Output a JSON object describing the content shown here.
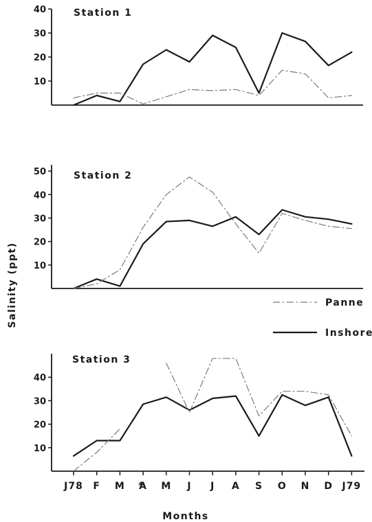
{
  "chart_data": {
    "type": "line",
    "ylabel": "Salinity (ppt)",
    "xlabel": "Months",
    "x": [
      "J78",
      "F",
      "M",
      "A",
      "M",
      "J",
      "J",
      "A",
      "S",
      "O",
      "N",
      "D",
      "J79"
    ],
    "legend": {
      "placement": "right",
      "entries": [
        {
          "name": "Panne",
          "style": "dash-dot",
          "color": "#7a7a7a"
        },
        {
          "name": "Inshore",
          "style": "solid",
          "color": "#1a1a1a"
        }
      ]
    },
    "annotation": "*",
    "panels": [
      {
        "title": "Station 1",
        "ylim": [
          0,
          40
        ],
        "yticks": [
          "40",
          "30",
          "20",
          "10"
        ],
        "series": [
          {
            "name": "Inshore",
            "values": [
              0,
              4,
              1.5,
              17,
              23,
              18,
              29,
              24,
              5,
              30,
              26.5,
              16.5,
              22
            ]
          },
          {
            "name": "Panne",
            "values": [
              3,
              5,
              5,
              0.5,
              3.5,
              6.5,
              6,
              6.5,
              4,
              14.5,
              13,
              3,
              4
            ]
          }
        ]
      },
      {
        "title": "Station 2",
        "ylim": [
          0,
          55
        ],
        "yticks": [
          "50",
          "40",
          "30",
          "20",
          "10"
        ],
        "series": [
          {
            "name": "Inshore",
            "values": [
              0,
              4,
              1,
              19,
              28.5,
              29,
              26.5,
              30.5,
              23,
              33.5,
              30.5,
              29.5,
              27.5
            ]
          },
          {
            "name": "Panne",
            "values": [
              0,
              2,
              8,
              26,
              40,
              47.5,
              41,
              27.5,
              15,
              32,
              29,
              26.5,
              25.5
            ]
          }
        ]
      },
      {
        "title": "Station 3",
        "ylim": [
          0,
          50
        ],
        "yticks": [
          "40",
          "30",
          "20",
          "10"
        ],
        "series": [
          {
            "name": "Inshore",
            "values": [
              6.5,
              13,
              13,
              28.5,
              31.5,
              26,
              31,
              32,
              15,
              32.5,
              28,
              31.5,
              6.5
            ]
          },
          {
            "name": "Panne",
            "values": [
              0,
              8,
              18,
              null,
              46,
              25,
              48,
              48,
              23.5,
              34,
              34,
              32.5,
              15
            ]
          }
        ]
      }
    ]
  }
}
